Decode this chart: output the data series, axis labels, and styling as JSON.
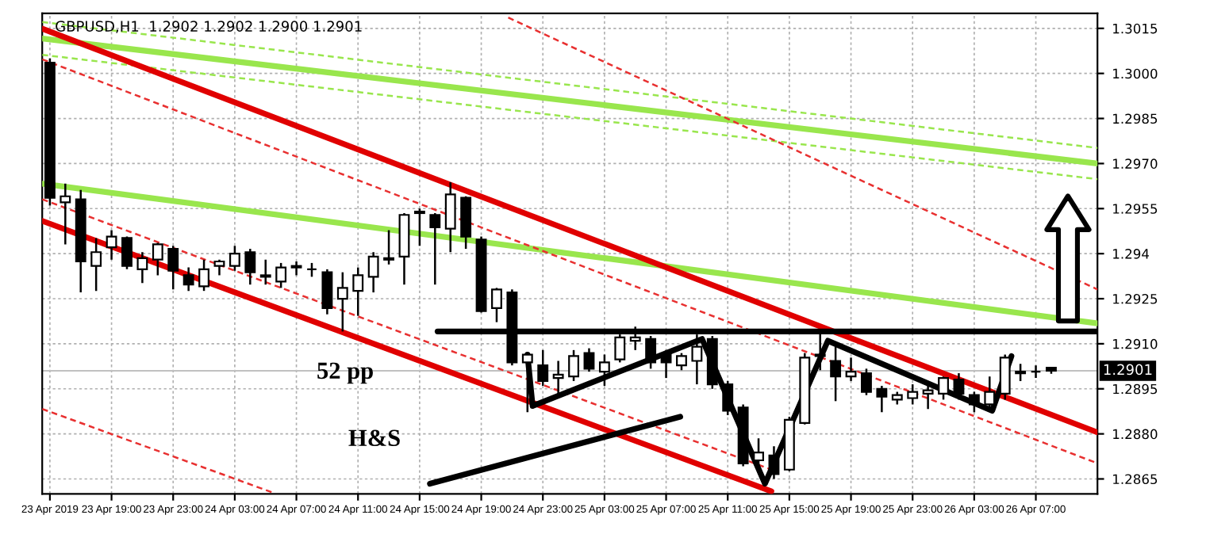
{
  "chart_data": {
    "type": "candlestick",
    "title": "GBPUSD,H1  1.2902 1.2902 1.2900 1.2901",
    "x": [
      "2019-04-23T15:00",
      "2019-04-23T16:00",
      "2019-04-23T17:00",
      "2019-04-23T18:00",
      "2019-04-23T19:00",
      "2019-04-23T20:00",
      "2019-04-23T21:00",
      "2019-04-23T22:00",
      "2019-04-23T23:00",
      "2019-04-24T00:00",
      "2019-04-24T01:00",
      "2019-04-24T02:00",
      "2019-04-24T03:00",
      "2019-04-24T04:00",
      "2019-04-24T05:00",
      "2019-04-24T06:00",
      "2019-04-24T07:00",
      "2019-04-24T08:00",
      "2019-04-24T09:00",
      "2019-04-24T10:00",
      "2019-04-24T11:00",
      "2019-04-24T12:00",
      "2019-04-24T13:00",
      "2019-04-24T14:00",
      "2019-04-24T15:00",
      "2019-04-24T16:00",
      "2019-04-24T17:00",
      "2019-04-24T18:00",
      "2019-04-24T19:00",
      "2019-04-24T20:00",
      "2019-04-24T21:00",
      "2019-04-24T22:00",
      "2019-04-24T23:00",
      "2019-04-25T00:00",
      "2019-04-25T01:00",
      "2019-04-25T02:00",
      "2019-04-25T03:00",
      "2019-04-25T04:00",
      "2019-04-25T05:00",
      "2019-04-25T06:00",
      "2019-04-25T07:00",
      "2019-04-25T08:00",
      "2019-04-25T09:00",
      "2019-04-25T10:00",
      "2019-04-25T11:00",
      "2019-04-25T12:00",
      "2019-04-25T13:00",
      "2019-04-25T14:00",
      "2019-04-25T15:00",
      "2019-04-25T16:00",
      "2019-04-25T17:00",
      "2019-04-25T18:00",
      "2019-04-25T19:00",
      "2019-04-25T20:00",
      "2019-04-25T21:00",
      "2019-04-25T22:00",
      "2019-04-25T23:00",
      "2019-04-26T00:00",
      "2019-04-26T01:00",
      "2019-04-26T02:00",
      "2019-04-26T03:00",
      "2019-04-26T04:00",
      "2019-04-26T05:00",
      "2019-04-26T06:00",
      "2019-04-26T07:00",
      "2019-04-26T08:00"
    ],
    "ohlc": [
      [
        1.30036,
        1.3005,
        1.2956,
        1.29586
      ],
      [
        1.29571,
        1.29633,
        1.29431,
        1.29591
      ],
      [
        1.29581,
        1.29612,
        1.29271,
        1.29374
      ],
      [
        1.29359,
        1.29452,
        1.29276,
        1.29405
      ],
      [
        1.29421,
        1.29478,
        1.2938,
        1.29457
      ],
      [
        1.29452,
        1.29457,
        1.29348,
        1.29359
      ],
      [
        1.29348,
        1.29405,
        1.29302,
        1.29385
      ],
      [
        1.2938,
        1.29436,
        1.29328,
        1.29431
      ],
      [
        1.29416,
        1.29426,
        1.29281,
        1.29343
      ],
      [
        1.29328,
        1.29354,
        1.29276,
        1.29297
      ],
      [
        1.29291,
        1.2938,
        1.29276,
        1.29348
      ],
      [
        1.29359,
        1.2938,
        1.29328,
        1.29374
      ],
      [
        1.29359,
        1.29426,
        1.29343,
        1.294
      ],
      [
        1.29405,
        1.29416,
        1.29297,
        1.29338
      ],
      [
        1.29328,
        1.2938,
        1.29297,
        1.29323
      ],
      [
        1.29307,
        1.29369,
        1.29286,
        1.29354
      ],
      [
        1.29354,
        1.29374,
        1.29328,
        1.29359
      ],
      [
        1.29348,
        1.29369,
        1.29323,
        1.29348
      ],
      [
        1.29338,
        1.29348,
        1.29198,
        1.29219
      ],
      [
        1.2925,
        1.29338,
        1.29141,
        1.29286
      ],
      [
        1.29276,
        1.29354,
        1.29193,
        1.29328
      ],
      [
        1.29323,
        1.29405,
        1.29271,
        1.2939
      ],
      [
        1.2938,
        1.29478,
        1.29364,
        1.29385
      ],
      [
        1.2939,
        1.29535,
        1.29297,
        1.29529
      ],
      [
        1.29535,
        1.2955,
        1.29426,
        1.2954
      ],
      [
        1.29529,
        1.29535,
        1.29297,
        1.29488
      ],
      [
        1.29483,
        1.29638,
        1.29405,
        1.29597
      ],
      [
        1.29586,
        1.29591,
        1.29416,
        1.29457
      ],
      [
        1.29447,
        1.29457,
        1.29204,
        1.29209
      ],
      [
        1.29219,
        1.29286,
        1.29172,
        1.29281
      ],
      [
        1.29271,
        1.29281,
        1.29028,
        1.29038
      ],
      [
        1.29038,
        1.29069,
        1.28872,
        1.29064
      ],
      [
        1.29028,
        1.29079,
        1.2896,
        1.28976
      ],
      [
        1.28986,
        1.29043,
        1.28924,
        1.28997
      ],
      [
        1.28991,
        1.29079,
        1.28976,
        1.29059
      ],
      [
        1.29069,
        1.29085,
        1.29007,
        1.29017
      ],
      [
        1.29007,
        1.29064,
        1.2896,
        1.29038
      ],
      [
        1.29048,
        1.29131,
        1.29038,
        1.29121
      ],
      [
        1.2911,
        1.29157,
        1.29079,
        1.29121
      ],
      [
        1.29116,
        1.29126,
        1.29017,
        1.29038
      ],
      [
        1.29064,
        1.29079,
        1.28986,
        1.29038
      ],
      [
        1.29028,
        1.29069,
        1.29012,
        1.29059
      ],
      [
        1.29043,
        1.29131,
        1.28965,
        1.2909
      ],
      [
        1.29116,
        1.29126,
        1.2895,
        1.28965
      ],
      [
        1.28965,
        1.28976,
        1.28862,
        1.28877
      ],
      [
        1.28888,
        1.28898,
        1.28692,
        1.28702
      ],
      [
        1.28712,
        1.28785,
        1.28692,
        1.28738
      ],
      [
        1.28728,
        1.28759,
        1.2865,
        1.28666
      ],
      [
        1.28681,
        1.28857,
        1.28676,
        1.28847
      ],
      [
        1.28836,
        1.29069,
        1.28831,
        1.29054
      ],
      [
        1.29059,
        1.29141,
        1.29012,
        1.29064
      ],
      [
        1.29043,
        1.2909,
        1.28909,
        1.28991
      ],
      [
        1.28991,
        1.29054,
        1.28976,
        1.29007
      ],
      [
        1.29002,
        1.29017,
        1.28929,
        1.2894
      ],
      [
        1.2895,
        1.2896,
        1.28872,
        1.28924
      ],
      [
        1.28914,
        1.2894,
        1.28898,
        1.28929
      ],
      [
        1.28919,
        1.28965,
        1.28898,
        1.2894
      ],
      [
        1.28934,
        1.28976,
        1.28883,
        1.28945
      ],
      [
        1.28934,
        1.28991,
        1.28914,
        1.28986
      ],
      [
        1.28981,
        1.29002,
        1.28914,
        1.28934
      ],
      [
        1.28929,
        1.2894,
        1.28872,
        1.28898
      ],
      [
        1.28898,
        1.28991,
        1.28888,
        1.2894
      ],
      [
        1.28934,
        1.29064,
        1.28914,
        1.29054
      ],
      [
        1.29002,
        1.29033,
        1.28976,
        1.29007
      ],
      [
        1.29007,
        1.29028,
        1.28986,
        1.29007
      ],
      [
        1.2902,
        1.2902,
        1.29,
        1.2901
      ]
    ],
    "series": [
      {
        "type": "line",
        "color": "#99e64d",
        "line_style": "dashed",
        "x": [
          "2019-04-23T14:30",
          "2019-04-26T11:00"
        ],
        "values": [
          1.30171,
          1.29752
        ]
      },
      {
        "type": "line",
        "color": "#99e64d",
        "line_style": "dashed",
        "x": [
          "2019-04-23T14:30",
          "2019-04-26T11:00"
        ],
        "values": [
          1.30062,
          1.29648
        ]
      },
      {
        "type": "line",
        "color": "#99e64d",
        "line_style": "solid",
        "x": [
          "2019-04-23T14:30",
          "2019-04-26T11:00"
        ],
        "values": [
          1.30116,
          1.297
        ]
      },
      {
        "type": "line",
        "color": "#99e64d",
        "line_style": "solid",
        "x": [
          "2019-04-23T14:30",
          "2019-04-26T11:00"
        ],
        "values": [
          1.29633,
          1.29168
        ]
      },
      {
        "type": "line",
        "color": "#e83030",
        "line_style": "dashed",
        "x": [
          "2019-04-24T20:45",
          "2019-04-26T11:00"
        ],
        "values": [
          1.30186,
          1.29281
        ]
      },
      {
        "type": "line",
        "color": "#e83030",
        "line_style": "dashed",
        "x": [
          "2019-04-23T14:30",
          "2019-04-26T11:00"
        ],
        "values": [
          1.30047,
          1.28702
        ]
      },
      {
        "type": "line",
        "color": "#e83030",
        "line_style": "dashed",
        "x": [
          "2019-04-23T14:30",
          "2019-04-25T13:50"
        ],
        "values": [
          1.29581,
          1.28681
        ]
      },
      {
        "type": "line",
        "color": "#e83030",
        "line_style": "dashed",
        "x": [
          "2019-04-23T14:30",
          "2019-04-24T05:30"
        ],
        "values": [
          1.28883,
          1.28604
        ]
      },
      {
        "type": "line",
        "color": "#e00000",
        "line_style": "solid",
        "x": [
          "2019-04-23T14:30",
          "2019-04-26T11:00"
        ],
        "values": [
          1.30149,
          1.28805
        ]
      },
      {
        "type": "line",
        "color": "#e00000",
        "line_style": "solid",
        "x": [
          "2019-04-23T14:30",
          "2019-04-25T13:50"
        ],
        "values": [
          1.29509,
          1.28609
        ]
      },
      {
        "type": "line",
        "color": "#000000",
        "line_style": "solid",
        "x": [
          "2019-04-24T16:10",
          "2019-04-26T11:00"
        ],
        "values": [
          1.29141,
          1.29141
        ]
      },
      {
        "type": "line",
        "color": "#000000",
        "line_style": "solid",
        "x": [
          "2019-04-24T22:00",
          "2019-04-24T22:20",
          "2019-04-25T09:20",
          "2019-04-25T13:25",
          "2019-04-25T17:30",
          "2019-04-26T04:10",
          "2019-04-26T05:25"
        ],
        "values": [
          1.29064,
          1.28893,
          1.29116,
          1.28634,
          1.2911,
          1.28877,
          1.29059
        ]
      },
      {
        "type": "line",
        "color": "#000000",
        "line_style": "solid",
        "x": [
          "2019-04-24T15:40",
          "2019-04-25T07:55"
        ],
        "values": [
          1.28634,
          1.28857
        ]
      }
    ],
    "xlim": [
      "2019-04-23T14:30",
      "2019-04-26T11:00"
    ],
    "xticks": [
      {
        "value": "2019-04-23T15:00",
        "label": "23 Apr 2019"
      },
      {
        "value": "2019-04-23T19:00",
        "label": "23 Apr 19:00"
      },
      {
        "value": "2019-04-23T23:00",
        "label": "23 Apr 23:00"
      },
      {
        "value": "2019-04-24T03:00",
        "label": "24 Apr 03:00"
      },
      {
        "value": "2019-04-24T07:00",
        "label": "24 Apr 07:00"
      },
      {
        "value": "2019-04-24T11:00",
        "label": "24 Apr 11:00"
      },
      {
        "value": "2019-04-24T15:00",
        "label": "24 Apr 15:00"
      },
      {
        "value": "2019-04-24T19:00",
        "label": "24 Apr 19:00"
      },
      {
        "value": "2019-04-24T23:00",
        "label": "24 Apr 23:00"
      },
      {
        "value": "2019-04-25T03:00",
        "label": "25 Apr 03:00"
      },
      {
        "value": "2019-04-25T07:00",
        "label": "25 Apr 07:00"
      },
      {
        "value": "2019-04-25T11:00",
        "label": "25 Apr 11:00"
      },
      {
        "value": "2019-04-25T15:00",
        "label": "25 Apr 15:00"
      },
      {
        "value": "2019-04-25T19:00",
        "label": "25 Apr 19:00"
      },
      {
        "value": "2019-04-25T23:00",
        "label": "25 Apr 23:00"
      },
      {
        "value": "2019-04-26T03:00",
        "label": "26 Apr 03:00"
      },
      {
        "value": "2019-04-26T07:00",
        "label": "26 Apr 07:00"
      }
    ],
    "ylim": [
      1.286,
      1.302
    ],
    "yticks": [
      1.2865,
      {
        "value": 1.288,
        "label": "1.2880"
      },
      1.2895,
      {
        "value": 1.291,
        "label": "1.2910"
      },
      1.2925,
      1.294,
      1.2955,
      {
        "value": 1.297,
        "label": "1.2970"
      },
      1.2985,
      {
        "value": 1.3,
        "label": "1.3000"
      },
      1.3015
    ],
    "ref_lines": [
      {
        "axis": "y",
        "value": 1.2901,
        "label": "1.2901",
        "color": "#c0c0c0"
      }
    ],
    "annotations": [
      "52 pp",
      "H&S"
    ],
    "grid": true,
    "legend": false
  }
}
